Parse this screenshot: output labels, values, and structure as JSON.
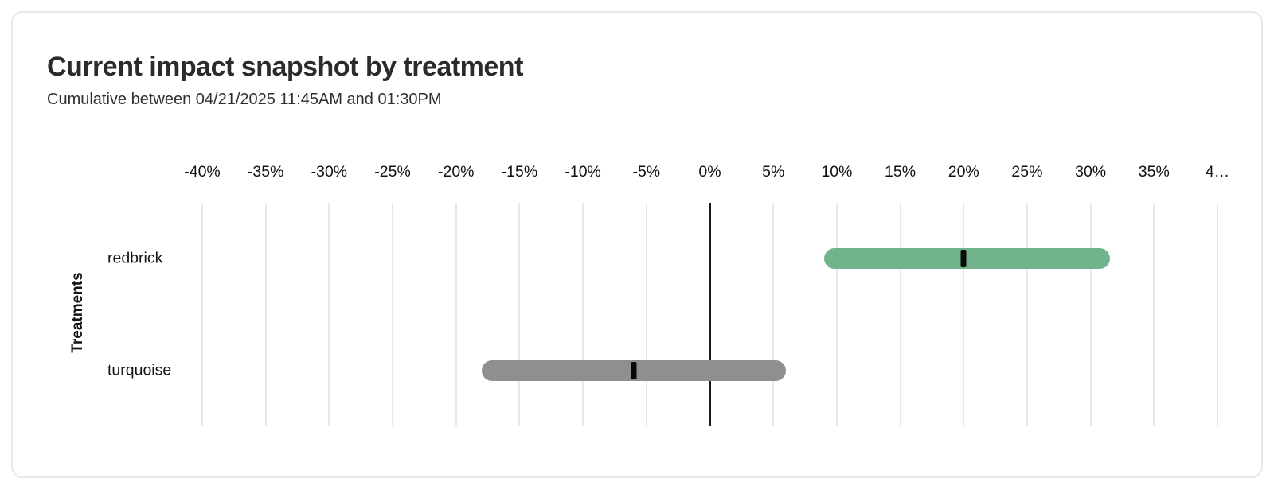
{
  "card": {
    "title": "Current impact snapshot by treatment",
    "subtitle": "Cumulative between 04/21/2025 11:45AM and 01:30PM"
  },
  "chart_data": {
    "type": "bar",
    "variant": "horizontal-interval-with-point-estimate",
    "title": "Current impact snapshot by treatment",
    "subtitle": "Cumulative between 04/21/2025 11:45AM and 01:30PM",
    "xlabel": "",
    "ylabel": "Treatments",
    "xlim": [
      -40,
      40
    ],
    "x_tick_unit": "%",
    "tick_values": [
      -40,
      -35,
      -30,
      -25,
      -20,
      -15,
      -10,
      -5,
      0,
      5,
      10,
      15,
      20,
      25,
      30,
      35,
      40
    ],
    "tick_labels": [
      "-40%",
      "-35%",
      "-30%",
      "-25%",
      "-20%",
      "-15%",
      "-10%",
      "-5%",
      "0%",
      "5%",
      "10%",
      "15%",
      "20%",
      "25%",
      "30%",
      "35%",
      "4…"
    ],
    "grid": "vertical",
    "legend": "none",
    "zero_line": true,
    "categories": [
      "redbrick",
      "turquoise"
    ],
    "rows": [
      {
        "label": "redbrick",
        "low": 9,
        "high": 31.5,
        "point": 20,
        "color": "#71b48c"
      },
      {
        "label": "turquoise",
        "low": -18,
        "high": 6,
        "point": -6,
        "color": "#8f8f8f"
      }
    ],
    "marker_color": "#0a0a0a"
  },
  "colors": {
    "card_border": "#e8e8e8",
    "gridline": "#e9e9e9",
    "zero_line": "#1a1a1a",
    "title_text": "#2b2b2b",
    "subtitle_text": "#2f2f2f",
    "tick_text": "#111111",
    "redbrick_bar": "#71b48c",
    "turquoise_bar": "#8f8f8f"
  }
}
